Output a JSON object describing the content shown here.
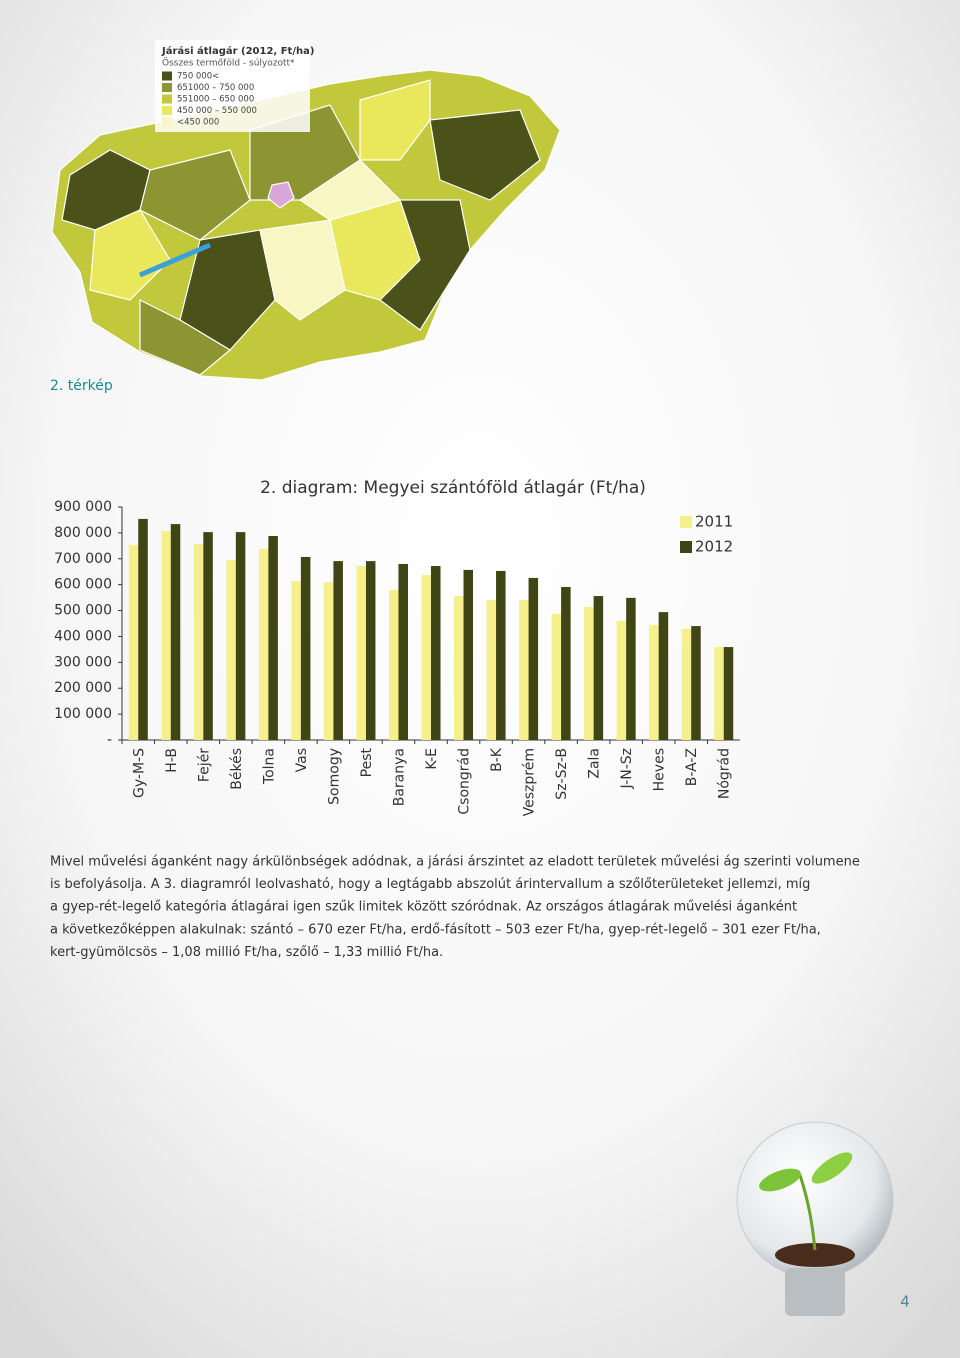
{
  "map": {
    "title": "Járási átlagár (2012, Ft/ha)",
    "subtitle": "Összes termőföld - súlyozott*",
    "legend": [
      {
        "label": "750 000<",
        "color": "#4a5119"
      },
      {
        "label": "651000 – 750 000",
        "color": "#8d9432"
      },
      {
        "label": "551000 – 650 000",
        "color": "#c2c83c"
      },
      {
        "label": "450 000 – 550 000",
        "color": "#e9e85c"
      },
      {
        "label": "<450 000",
        "color": "#f8f6c2"
      }
    ],
    "caption": "2. térkép"
  },
  "chart_data": {
    "type": "bar",
    "title": "2. diagram: Megyei szántóföld átlagár (Ft/ha)",
    "categories": [
      "Gy-M-S",
      "H-B",
      "Fejér",
      "Békés",
      "Tolna",
      "Vas",
      "Somogy",
      "Pest",
      "Baranya",
      "K-E",
      "Csongrád",
      "B-K",
      "Veszprém",
      "Sz-Sz-B",
      "Zala",
      "J-N-Sz",
      "Heves",
      "B-A-Z",
      "Nógrád"
    ],
    "series": [
      {
        "name": "2011",
        "color": "#f5f08c",
        "values": [
          753000,
          807000,
          757000,
          695000,
          738000,
          614000,
          610000,
          672000,
          580000,
          637000,
          556000,
          541000,
          541000,
          487000,
          514000,
          460000,
          444000,
          429000,
          359000
        ]
      },
      {
        "name": "2012",
        "color": "#3f4515",
        "values": [
          854000,
          834000,
          803000,
          803000,
          788000,
          707000,
          691000,
          691000,
          680000,
          672000,
          657000,
          653000,
          626000,
          591000,
          556000,
          549000,
          494000,
          440000,
          359000
        ]
      }
    ],
    "ylim": [
      0,
      900000
    ],
    "yticks": [
      {
        "value": 0,
        "label": "-"
      },
      {
        "value": 100000,
        "label": "100 000"
      },
      {
        "value": 200000,
        "label": "200 000"
      },
      {
        "value": 300000,
        "label": "300 000"
      },
      {
        "value": 400000,
        "label": "400 000"
      },
      {
        "value": 500000,
        "label": "500 000"
      },
      {
        "value": 600000,
        "label": "600 000"
      },
      {
        "value": 700000,
        "label": "700 000"
      },
      {
        "value": 800000,
        "label": "800 000"
      },
      {
        "value": 900000,
        "label": "900 000"
      }
    ],
    "grid": false,
    "legend": "top-right"
  },
  "body": {
    "lines": [
      "Mivel művelési áganként nagy árkülönbségek adódnak, a járási árszintet az eladott területek művelési ág szerinti volumene",
      "is befolyásolja. A 3. diagramról leolvasható, hogy a legtágabb abszolút árintervallum a szőlőterületeket jellemzi, míg",
      "a gyep-rét-legelő kategória átlagárai igen szűk limitek között szóródnak. Az országos átlagárak művelési áganként",
      "a következőképpen alakulnak: szántó – 670 ezer Ft/ha, erdő-fásított – 503 ezer Ft/ha, gyep-rét-legelő – 301 ezer Ft/ha,",
      "kert-gyümölcsös – 1,08 millió Ft/ha, szőlő – 1,33 millió Ft/ha."
    ]
  },
  "page_number": "4"
}
